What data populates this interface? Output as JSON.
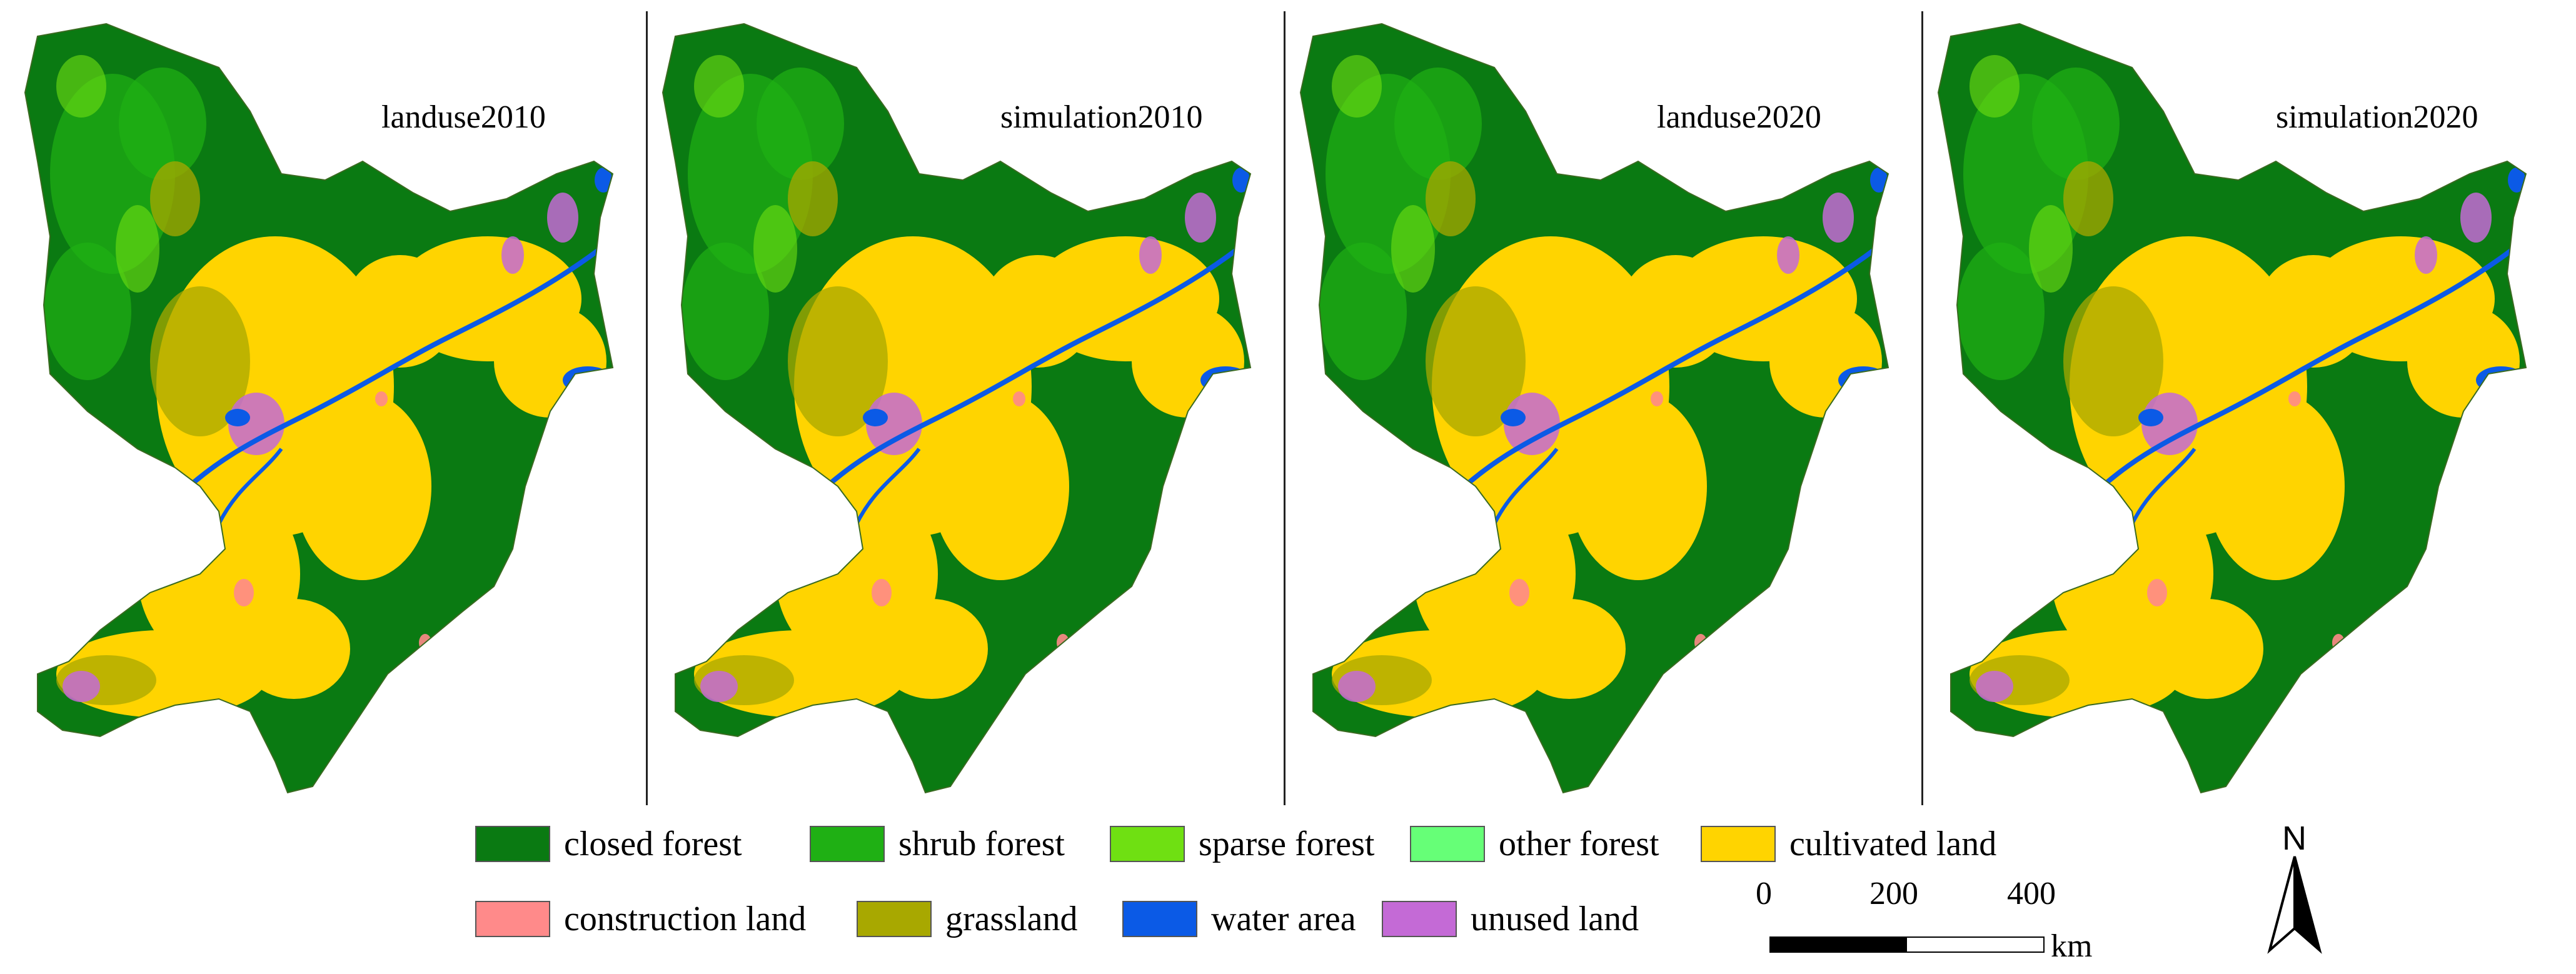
{
  "panels": [
    {
      "label": "landuse2010"
    },
    {
      "label": "simulation2010"
    },
    {
      "label": "landuse2020"
    },
    {
      "label": "simulation2020"
    }
  ],
  "legend": {
    "row1": [
      {
        "label": "closed forest",
        "color": "#0a7a12"
      },
      {
        "label": "shrub forest",
        "color": "#1fb014"
      },
      {
        "label": "sparse forest",
        "color": "#6fe012"
      },
      {
        "label": "other forest",
        "color": "#66ff77"
      },
      {
        "label": "cultivated land",
        "color": "#ffd400"
      }
    ],
    "row2": [
      {
        "label": "construction land",
        "color": "#ff8a8a"
      },
      {
        "label": "grassland",
        "color": "#a8a800"
      },
      {
        "label": "water area",
        "color": "#0b5ae6"
      },
      {
        "label": "unused land",
        "color": "#c46ad6"
      }
    ]
  },
  "scale_bar": {
    "ticks": [
      "0",
      "200",
      "400"
    ],
    "unit": "km"
  },
  "north_arrow": {
    "label": "N",
    "icon": "north-arrow-icon"
  }
}
